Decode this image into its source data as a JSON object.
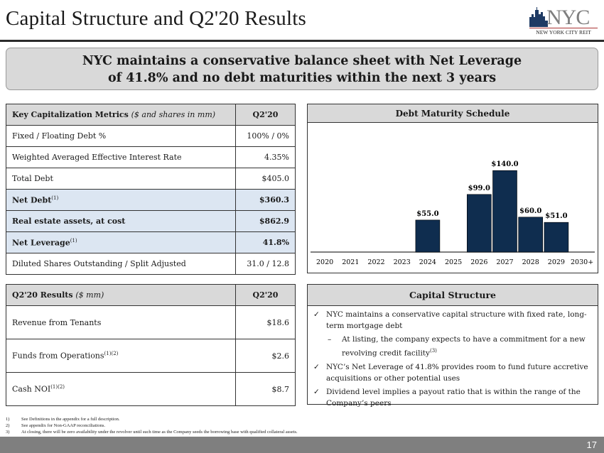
{
  "header": {
    "title": "Capital Structure and Q2'20 Results",
    "logo_text": "NYC",
    "logo_subtext": "NEW YORK CITY REIT"
  },
  "banner": {
    "line1": "NYC maintains a conservative balance sheet with Net Leverage",
    "line2": "of 41.8% and no debt maturities within the next 3 years"
  },
  "key_metrics": {
    "header_label": "Key Capitalization Metrics",
    "header_note": "($ and shares in mm)",
    "header_col": "Q2'20",
    "rows": [
      {
        "label": "Fixed / Floating Debt %",
        "sup": "",
        "value": "100% / 0%"
      },
      {
        "label": "Weighted Averaged Effective Interest Rate",
        "sup": "",
        "value": "4.35%"
      },
      {
        "label": "Total Debt",
        "sup": "",
        "value": "$405.0"
      },
      {
        "label": "Net Debt",
        "sup": "(1)",
        "value": "$360.3"
      },
      {
        "label": "Real estate assets, at cost",
        "sup": "",
        "value": "$862.9"
      },
      {
        "label": "Net Leverage",
        "sup": "(1)",
        "value": "41.8%"
      },
      {
        "label": "Diluted Shares Outstanding / Split Adjusted",
        "sup": "",
        "value": "31.0 / 12.8"
      }
    ]
  },
  "results": {
    "header_label": "Q2'20 Results",
    "header_note": "($ mm)",
    "header_col": "Q2'20",
    "rows": [
      {
        "label": "Revenue from Tenants",
        "sup": "",
        "value": "$18.6"
      },
      {
        "label": "Funds from Operations",
        "sup": "(1)(2)",
        "value": "$2.6"
      },
      {
        "label": "Cash NOI",
        "sup": "(1)(2)",
        "value": "$8.7"
      }
    ]
  },
  "chart_data": {
    "type": "bar",
    "title": "Debt Maturity Schedule",
    "categories": [
      "2020",
      "2021",
      "2022",
      "2023",
      "2024",
      "2025",
      "2026",
      "2027",
      "2028",
      "2029",
      "2030+"
    ],
    "values": [
      0,
      0,
      0,
      0,
      55.0,
      0,
      99.0,
      140.0,
      60.0,
      51.0,
      0
    ],
    "labels": [
      "",
      "",
      "",
      "",
      "$55.0",
      "",
      "$99.0",
      "$140.0",
      "$60.0",
      "$51.0",
      ""
    ],
    "xlabel": "",
    "ylabel": "",
    "ylim": [
      0,
      160
    ],
    "bar_color": "#0f2d4f"
  },
  "capital_structure": {
    "title": "Capital Structure",
    "bullets": [
      {
        "type": "check",
        "text": "NYC maintains a conservative capital structure with fixed rate, long-term mortgage debt",
        "sup": ""
      },
      {
        "type": "sub",
        "text": "At listing, the company expects to have a commitment for a new revolving credit facility",
        "sup": "(3)"
      },
      {
        "type": "check",
        "text": "NYC’s Net Leverage of 41.8% provides room to fund future accretive acquisitions or other potential uses",
        "sup": ""
      },
      {
        "type": "check",
        "text": "Dividend level implies a payout ratio that is within the range of the Company’s peers",
        "sup": ""
      }
    ]
  },
  "footnotes": [
    {
      "n": "1)",
      "text": "See Definitions in the appendix for a full description."
    },
    {
      "n": "2)",
      "text": "See appendix for Non-GAAP reconciliations."
    },
    {
      "n": "3)",
      "text": "At closing, there will be zero availability under the revolver until such time as the Company seeds the borrowing base with qualified collateral assets."
    }
  ],
  "page_number": "17"
}
